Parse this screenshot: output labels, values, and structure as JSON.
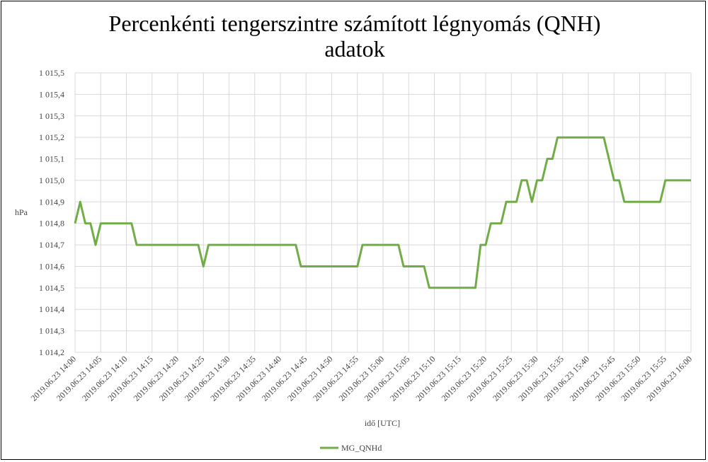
{
  "chart_data": {
    "type": "line",
    "title_line1": "Percenkénti tengerszintre számított légnyomás (QNH)",
    "title_line2": "adatok",
    "xlabel": "idő [UTC]",
    "ylabel": "hPa",
    "ylim": [
      1014.2,
      1015.5
    ],
    "y_ticks": [
      {
        "value": 1015.5,
        "label": "1 015,5"
      },
      {
        "value": 1015.4,
        "label": "1 015,4"
      },
      {
        "value": 1015.3,
        "label": "1 015,3"
      },
      {
        "value": 1015.2,
        "label": "1 015,2"
      },
      {
        "value": 1015.1,
        "label": "1 015,1"
      },
      {
        "value": 1015.0,
        "label": "1 015,0"
      },
      {
        "value": 1014.9,
        "label": "1 014,9"
      },
      {
        "value": 1014.8,
        "label": "1 014,8"
      },
      {
        "value": 1014.7,
        "label": "1 014,7"
      },
      {
        "value": 1014.6,
        "label": "1 014,6"
      },
      {
        "value": 1014.5,
        "label": "1 014,5"
      },
      {
        "value": 1014.4,
        "label": "1 014,4"
      },
      {
        "value": 1014.3,
        "label": "1 014,3"
      },
      {
        "value": 1014.2,
        "label": "1 014,2"
      }
    ],
    "x_ticks": [
      "2019.06.23 14:00",
      "2019.06.23 14:05",
      "2019.06.23 14:10",
      "2019.06.23 14:15",
      "2019.06.23 14:20",
      "2019.06.23 14:25",
      "2019.06.23 14:30",
      "2019.06.23 14:35",
      "2019.06.23 14:40",
      "2019.06.23 14:45",
      "2019.06.23 14:50",
      "2019.06.23 14:55",
      "2019.06.23 15:00",
      "2019.06.23 15:05",
      "2019.06.23 15:10",
      "2019.06.23 15:15",
      "2019.06.23 15:20",
      "2019.06.23 15:25",
      "2019.06.23 15:30",
      "2019.06.23 15:35",
      "2019.06.23 15:40",
      "2019.06.23 15:45",
      "2019.06.23 15:50",
      "2019.06.23 15:55",
      "2019.06.23 16:00"
    ],
    "grid": true,
    "legend_position": "bottom",
    "series": [
      {
        "name": "MG_QNHd",
        "color": "#70AD47",
        "points": [
          [
            "2019.06.23 14:00",
            1014.8
          ],
          [
            "2019.06.23 14:01",
            1014.9
          ],
          [
            "2019.06.23 14:02",
            1014.8
          ],
          [
            "2019.06.23 14:03",
            1014.8
          ],
          [
            "2019.06.23 14:04",
            1014.7
          ],
          [
            "2019.06.23 14:05",
            1014.8
          ],
          [
            "2019.06.23 14:11",
            1014.8
          ],
          [
            "2019.06.23 14:12",
            1014.7
          ],
          [
            "2019.06.23 14:24",
            1014.7
          ],
          [
            "2019.06.23 14:25",
            1014.6
          ],
          [
            "2019.06.23 14:26",
            1014.7
          ],
          [
            "2019.06.23 14:43",
            1014.7
          ],
          [
            "2019.06.23 14:44",
            1014.6
          ],
          [
            "2019.06.23 14:55",
            1014.6
          ],
          [
            "2019.06.23 14:56",
            1014.7
          ],
          [
            "2019.06.23 15:03",
            1014.7
          ],
          [
            "2019.06.23 15:04",
            1014.6
          ],
          [
            "2019.06.23 15:08",
            1014.6
          ],
          [
            "2019.06.23 15:09",
            1014.5
          ],
          [
            "2019.06.23 15:18",
            1014.5
          ],
          [
            "2019.06.23 15:19",
            1014.7
          ],
          [
            "2019.06.23 15:20",
            1014.7
          ],
          [
            "2019.06.23 15:21",
            1014.8
          ],
          [
            "2019.06.23 15:23",
            1014.8
          ],
          [
            "2019.06.23 15:24",
            1014.9
          ],
          [
            "2019.06.23 15:26",
            1014.9
          ],
          [
            "2019.06.23 15:27",
            1015.0
          ],
          [
            "2019.06.23 15:28",
            1015.0
          ],
          [
            "2019.06.23 15:29",
            1014.9
          ],
          [
            "2019.06.23 15:30",
            1015.0
          ],
          [
            "2019.06.23 15:31",
            1015.0
          ],
          [
            "2019.06.23 15:32",
            1015.1
          ],
          [
            "2019.06.23 15:33",
            1015.1
          ],
          [
            "2019.06.23 15:34",
            1015.2
          ],
          [
            "2019.06.23 15:43",
            1015.2
          ],
          [
            "2019.06.23 15:45",
            1015.0
          ],
          [
            "2019.06.23 15:46",
            1015.0
          ],
          [
            "2019.06.23 15:47",
            1014.9
          ],
          [
            "2019.06.23 15:54",
            1014.9
          ],
          [
            "2019.06.23 15:55",
            1015.0
          ],
          [
            "2019.06.23 16:00",
            1015.0
          ]
        ]
      }
    ]
  }
}
